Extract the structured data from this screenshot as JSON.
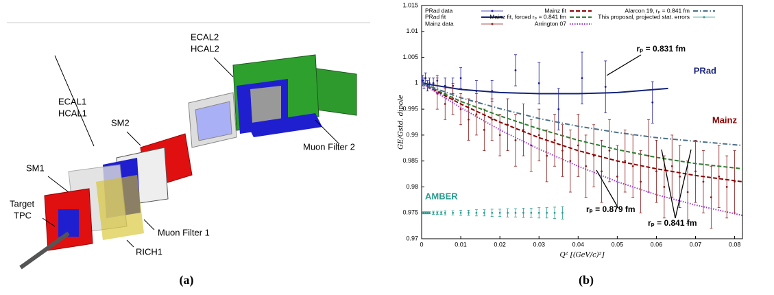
{
  "diagram": {
    "labels": [
      "ECAL2",
      "HCAL2",
      "ECAL1",
      "HCAL1",
      "SM2",
      "SM1",
      "Target",
      "TPC",
      "Muon Filter 2",
      "Muon Filter 1",
      "RICH1"
    ],
    "caption": "(a)"
  },
  "chart_data": {
    "type": "scatter",
    "caption": "(b)",
    "xlabel": "Q² [(GeV/c)²]",
    "ylabel": "GE/Gstd. dipole",
    "xlim": [
      0,
      0.082
    ],
    "xticks": [
      0,
      0.01,
      0.02,
      0.03,
      0.04,
      0.05,
      0.06,
      0.07,
      0.08
    ],
    "ylim": [
      0.97,
      1.015
    ],
    "yticks": [
      0.97,
      0.975,
      0.98,
      0.985,
      0.99,
      0.995,
      1,
      1.005,
      1.01,
      1.015
    ],
    "legend": "top",
    "series": [
      {
        "name": "PRad data",
        "color": "#1a1a9a",
        "style": "points",
        "x": [
          0.0003,
          0.0006,
          0.001,
          0.0015,
          0.002,
          0.003,
          0.004,
          0.006,
          0.008,
          0.01,
          0.014,
          0.018,
          0.024,
          0.03,
          0.035,
          0.041,
          0.047,
          0.059
        ],
        "values": [
          1.0005,
          1,
          1.001,
          0.9995,
          1,
          1,
          1.0005,
          0.9995,
          0.9995,
          1.001,
          0.9985,
          0.9985,
          1.0025,
          1,
          0.995,
          1.001,
          0.9993,
          0.9963
        ],
        "errors": [
          0.001,
          0.001,
          0.001,
          0.001,
          0.001,
          0.001,
          0.001,
          0.0015,
          0.0015,
          0.002,
          0.002,
          0.002,
          0.003,
          0.004,
          0.004,
          0.005,
          0.005,
          0.004
        ]
      },
      {
        "name": "PRad fit",
        "color": "#13237a",
        "style": "solid",
        "x": [
          0,
          0.01,
          0.02,
          0.03,
          0.04,
          0.05,
          0.063
        ],
        "values": [
          1,
          0.9988,
          0.9982,
          0.998,
          0.998,
          0.9982,
          0.999
        ]
      },
      {
        "name": "Mainz data",
        "color": "#8b1a1a",
        "style": "points",
        "x": [
          0.004,
          0.006,
          0.008,
          0.01,
          0.012,
          0.014,
          0.016,
          0.018,
          0.02,
          0.022,
          0.024,
          0.026,
          0.028,
          0.03,
          0.032,
          0.034,
          0.036,
          0.038,
          0.04,
          0.042,
          0.044,
          0.046,
          0.048,
          0.05,
          0.052,
          0.054,
          0.056,
          0.058,
          0.06,
          0.062,
          0.064,
          0.066,
          0.068,
          0.07,
          0.072,
          0.074,
          0.076,
          0.078,
          0.08
        ],
        "values": [
          0.998,
          0.996,
          0.997,
          0.995,
          0.993,
          0.994,
          0.991,
          0.993,
          0.99,
          0.992,
          0.989,
          0.991,
          0.988,
          0.99,
          0.986,
          0.989,
          0.987,
          0.985,
          0.988,
          0.984,
          0.986,
          0.983,
          0.987,
          0.982,
          0.985,
          0.984,
          0.981,
          0.986,
          0.983,
          0.98,
          0.984,
          0.982,
          0.979,
          0.983,
          0.981,
          0.978,
          0.982,
          0.98,
          0.981
        ],
        "errors": [
          0.003,
          0.003,
          0.003,
          0.003,
          0.004,
          0.004,
          0.004,
          0.004,
          0.004,
          0.005,
          0.005,
          0.005,
          0.005,
          0.005,
          0.005,
          0.005,
          0.005,
          0.006,
          0.006,
          0.006,
          0.006,
          0.006,
          0.006,
          0.006,
          0.006,
          0.006,
          0.006,
          0.007,
          0.006,
          0.006,
          0.006,
          0.006,
          0.006,
          0.006,
          0.006,
          0.006,
          0.006,
          0.006,
          0.006
        ]
      },
      {
        "name": "Mainz fit",
        "color": "#8b0000",
        "style": "dashed",
        "x": [
          0,
          0.01,
          0.02,
          0.03,
          0.04,
          0.05,
          0.06,
          0.07,
          0.082
        ],
        "values": [
          1,
          0.996,
          0.9925,
          0.9895,
          0.987,
          0.985,
          0.9835,
          0.9822,
          0.981
        ]
      },
      {
        "name": "Mainz fit, forced rₚ = 0.841 fm",
        "color": "#2e7d32",
        "style": "dashed",
        "x": [
          0,
          0.01,
          0.02,
          0.03,
          0.04,
          0.05,
          0.06,
          0.07,
          0.082
        ],
        "values": [
          1,
          0.9965,
          0.9937,
          0.9912,
          0.989,
          0.9872,
          0.9857,
          0.9845,
          0.9835
        ]
      },
      {
        "name": "Arrington 07",
        "color": "#9932cc",
        "style": "dotted",
        "x": [
          0,
          0.01,
          0.02,
          0.03,
          0.04,
          0.05,
          0.06,
          0.07,
          0.082
        ],
        "values": [
          1,
          0.9953,
          0.991,
          0.9873,
          0.984,
          0.981,
          0.9785,
          0.9765,
          0.9745
        ]
      },
      {
        "name": "Alarcon 19, rₚ = 0.841 fm",
        "color": "#4a6f8a",
        "style": "dashdot",
        "x": [
          0,
          0.01,
          0.02,
          0.03,
          0.04,
          0.05,
          0.06,
          0.07,
          0.082
        ],
        "values": [
          1,
          0.9972,
          0.9951,
          0.9932,
          0.9917,
          0.9905,
          0.9895,
          0.9888,
          0.988
        ]
      },
      {
        "name": "This proposal, projected stat. errors",
        "color": "#2a9d8f",
        "style": "points",
        "x": [
          0.0005,
          0.001,
          0.0015,
          0.002,
          0.003,
          0.004,
          0.005,
          0.006,
          0.008,
          0.01,
          0.012,
          0.014,
          0.016,
          0.018,
          0.02,
          0.022,
          0.024,
          0.026,
          0.028,
          0.03,
          0.032,
          0.034,
          0.036
        ],
        "values": [
          0.975,
          0.975,
          0.975,
          0.975,
          0.975,
          0.975,
          0.975,
          0.975,
          0.975,
          0.975,
          0.975,
          0.975,
          0.975,
          0.975,
          0.975,
          0.975,
          0.975,
          0.975,
          0.975,
          0.975,
          0.975,
          0.975,
          0.975
        ],
        "errors": [
          0.0002,
          0.0002,
          0.0002,
          0.0002,
          0.0003,
          0.0003,
          0.0003,
          0.0004,
          0.0004,
          0.0005,
          0.0005,
          0.0006,
          0.0006,
          0.0007,
          0.0007,
          0.0008,
          0.0008,
          0.0009,
          0.0009,
          0.001,
          0.001,
          0.0011,
          0.0012
        ]
      }
    ],
    "annotations": [
      {
        "text": "rₚ = 0.831 fm",
        "color": "#000000"
      },
      {
        "text": "PRad",
        "color": "#1a237e"
      },
      {
        "text": "Mainz",
        "color": "#8b0000"
      },
      {
        "text": "rₚ = 0.879 fm",
        "color": "#000000"
      },
      {
        "text": "rₚ = 0.841 fm",
        "color": "#000000"
      },
      {
        "text": "AMBER",
        "color": "#2a9d8f"
      }
    ]
  }
}
